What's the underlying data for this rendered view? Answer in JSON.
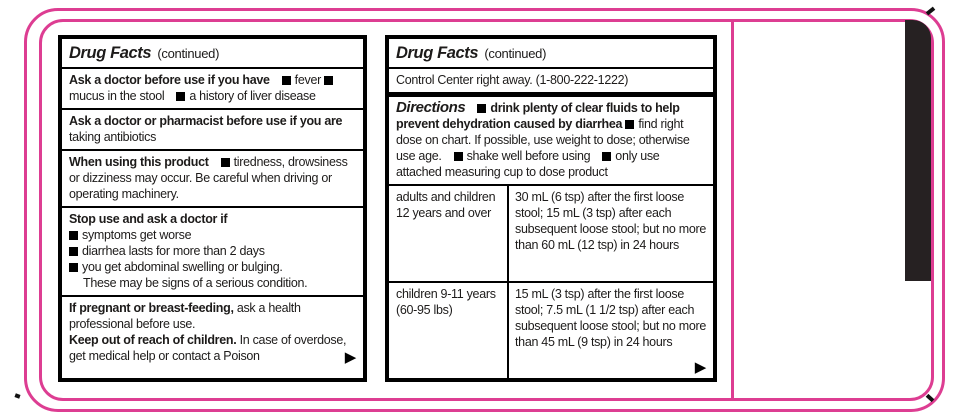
{
  "colors": {
    "pink": "#dd3d92",
    "bar_black": "#262122",
    "text": "#1d1b1a"
  },
  "left_panel": {
    "title": "Drug Facts",
    "title_suffix": "(continued)",
    "ask_doctor": {
      "heading": "Ask a doctor before use if you have",
      "items": [
        "fever",
        "mucus in the stool",
        "a history of liver disease"
      ]
    },
    "ask_pharmacist": {
      "heading": "Ask a doctor or pharmacist before use if you are",
      "text": "taking antibiotics"
    },
    "when_using": {
      "heading": "When using this product",
      "item": "tiredness, drowsiness or dizziness may occur. Be careful when driving or operating machinery."
    },
    "stop_use": {
      "heading": "Stop use and ask a doctor if",
      "items": [
        "symptoms get worse",
        "diarrhea lasts for more than 2 days",
        "you get abdominal swelling or bulging."
      ],
      "note": "These may be signs of a serious condition."
    },
    "pregnancy": {
      "heading": "If pregnant or breast-feeding,",
      "text": "ask a health professional before use."
    },
    "keep_out": {
      "heading": "Keep out of reach of children.",
      "text": "In case of overdose, get medical help or contact a Poison"
    },
    "continue_arrow": "▶"
  },
  "right_panel": {
    "title": "Drug Facts",
    "title_suffix": "(continued)",
    "poison_line": "Control Center right away. (1-800-222-1222)",
    "directions": {
      "heading": "Directions",
      "bold_item": "drink plenty of clear fluids to help prevent dehydration caused by diarrhea",
      "items": [
        "find right dose on chart. If possible, use weight to dose; otherwise use age.",
        "shake well before using",
        "only use attached measuring cup to dose product"
      ]
    },
    "dosage_table": {
      "rows": [
        {
          "group": "adults and children 12 years and over",
          "dose": "30 mL (6 tsp) after the first loose stool; 15 mL (3 tsp) after each subsequent loose stool; but no more than 60 mL (12 tsp) in 24 hours"
        },
        {
          "group": "children 9-11 years (60-95 lbs)",
          "dose": "15 mL (3 tsp) after the first loose stool; 7.5 mL (1 1/2 tsp) after each subsequent loose stool; but no more than 45 mL (9 tsp) in 24 hours"
        }
      ]
    },
    "continue_arrow": "▶"
  }
}
